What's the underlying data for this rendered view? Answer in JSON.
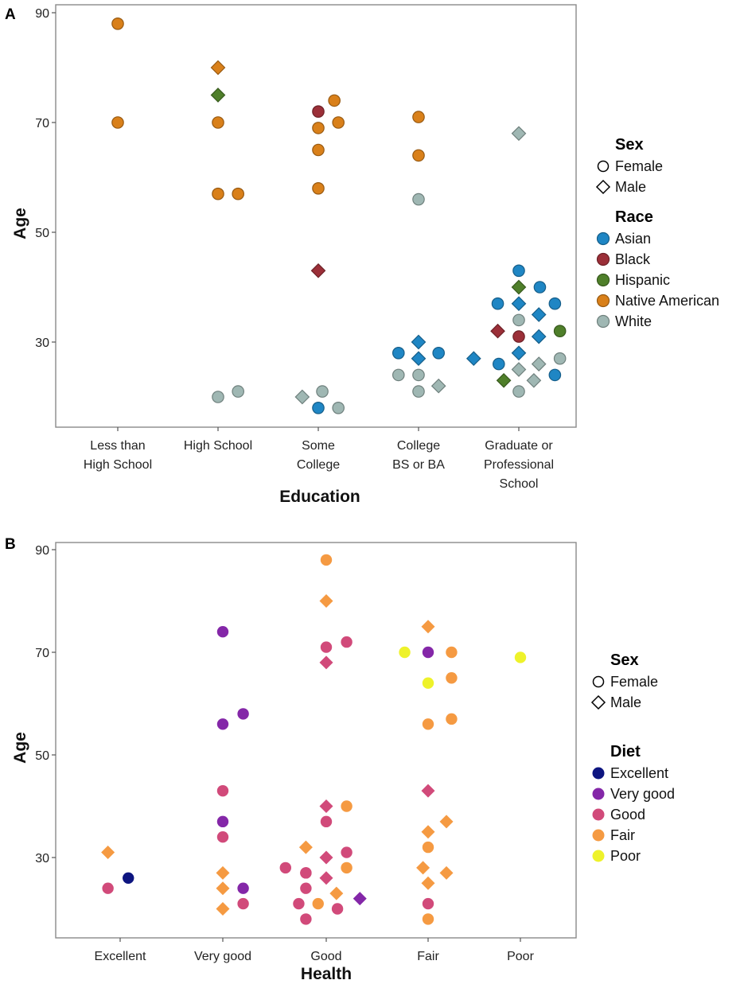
{
  "chart_data": [
    {
      "panel": "A",
      "type": "scatter",
      "xlabel": "Education",
      "ylabel": "Age",
      "categories": [
        [
          "Less than",
          "High School"
        ],
        [
          "High School"
        ],
        [
          "Some",
          "College"
        ],
        [
          "College",
          "BS or BA"
        ],
        [
          "Graduate or",
          "Professional",
          "School"
        ]
      ],
      "ylim": [
        15,
        92
      ],
      "yticks": [
        30,
        50,
        70,
        90
      ],
      "grid": false,
      "legend": {
        "position": "right",
        "groups": [
          {
            "title": "Sex",
            "kind": "shape",
            "items": [
              {
                "label": "Female",
                "shape": "circle"
              },
              {
                "label": "Male",
                "shape": "diamond"
              }
            ]
          },
          {
            "title": "Race",
            "kind": "color",
            "items": [
              {
                "label": "Asian",
                "color": "#1f86c4"
              },
              {
                "label": "Black",
                "color": "#9b2f38"
              },
              {
                "label": "Hispanic",
                "color": "#4f7f2a"
              },
              {
                "label": "Native American",
                "color": "#d9801a"
              },
              {
                "label": "White",
                "color": "#9fb7b3"
              }
            ]
          }
        ]
      },
      "points": [
        {
          "x": 1,
          "dx": 0,
          "y": 88,
          "shape": "circle",
          "group": "Native American"
        },
        {
          "x": 1,
          "dx": 0,
          "y": 70,
          "shape": "circle",
          "group": "Native American"
        },
        {
          "x": 2,
          "dx": 0,
          "y": 80,
          "shape": "diamond",
          "group": "Native American"
        },
        {
          "x": 2,
          "dx": 0,
          "y": 75,
          "shape": "diamond",
          "group": "Hispanic"
        },
        {
          "x": 2,
          "dx": 0,
          "y": 70,
          "shape": "circle",
          "group": "Native American"
        },
        {
          "x": 2,
          "dx": 0,
          "y": 57,
          "shape": "circle",
          "group": "Native American"
        },
        {
          "x": 2,
          "dx": 0.2,
          "y": 57,
          "shape": "circle",
          "group": "Native American"
        },
        {
          "x": 2,
          "dx": 0,
          "y": 20,
          "shape": "circle",
          "group": "White"
        },
        {
          "x": 2,
          "dx": 0.2,
          "y": 21,
          "shape": "circle",
          "group": "White"
        },
        {
          "x": 3,
          "dx": 0,
          "y": 72,
          "shape": "circle",
          "group": "Black"
        },
        {
          "x": 3,
          "dx": 0.16,
          "y": 74,
          "shape": "circle",
          "group": "Native American"
        },
        {
          "x": 3,
          "dx": 0,
          "y": 69,
          "shape": "circle",
          "group": "Native American"
        },
        {
          "x": 3,
          "dx": 0.2,
          "y": 70,
          "shape": "circle",
          "group": "Native American"
        },
        {
          "x": 3,
          "dx": 0,
          "y": 65,
          "shape": "circle",
          "group": "Native American"
        },
        {
          "x": 3,
          "dx": 0,
          "y": 58,
          "shape": "circle",
          "group": "Native American"
        },
        {
          "x": 3,
          "dx": 0,
          "y": 43,
          "shape": "diamond",
          "group": "Black"
        },
        {
          "x": 3,
          "dx": -0.16,
          "y": 20,
          "shape": "diamond",
          "group": "White"
        },
        {
          "x": 3,
          "dx": 0.04,
          "y": 21,
          "shape": "circle",
          "group": "White"
        },
        {
          "x": 3,
          "dx": 0,
          "y": 18,
          "shape": "circle",
          "group": "Asian"
        },
        {
          "x": 3,
          "dx": 0.2,
          "y": 18,
          "shape": "circle",
          "group": "White"
        },
        {
          "x": 4,
          "dx": 0,
          "y": 71,
          "shape": "circle",
          "group": "Native American"
        },
        {
          "x": 4,
          "dx": 0,
          "y": 64,
          "shape": "circle",
          "group": "Native American"
        },
        {
          "x": 4,
          "dx": 0,
          "y": 56,
          "shape": "circle",
          "group": "White"
        },
        {
          "x": 4,
          "dx": -0.2,
          "y": 28,
          "shape": "circle",
          "group": "Asian"
        },
        {
          "x": 4,
          "dx": 0,
          "y": 30,
          "shape": "diamond",
          "group": "Asian"
        },
        {
          "x": 4,
          "dx": 0.2,
          "y": 28,
          "shape": "circle",
          "group": "Asian"
        },
        {
          "x": 4,
          "dx": 0,
          "y": 27,
          "shape": "diamond",
          "group": "Asian"
        },
        {
          "x": 4,
          "dx": -0.2,
          "y": 24,
          "shape": "circle",
          "group": "White"
        },
        {
          "x": 4,
          "dx": 0,
          "y": 24,
          "shape": "circle",
          "group": "White"
        },
        {
          "x": 4,
          "dx": 0,
          "y": 21,
          "shape": "circle",
          "group": "White"
        },
        {
          "x": 4,
          "dx": 0.2,
          "y": 22,
          "shape": "diamond",
          "group": "White"
        },
        {
          "x": 5,
          "dx": 0,
          "y": 68,
          "shape": "diamond",
          "group": "White"
        },
        {
          "x": 5,
          "dx": 0,
          "y": 43,
          "shape": "circle",
          "group": "Asian"
        },
        {
          "x": 5,
          "dx": 0,
          "y": 40,
          "shape": "diamond",
          "group": "Hispanic"
        },
        {
          "x": 5,
          "dx": 0.21,
          "y": 40,
          "shape": "circle",
          "group": "Asian"
        },
        {
          "x": 5,
          "dx": -0.21,
          "y": 37,
          "shape": "circle",
          "group": "Asian"
        },
        {
          "x": 5,
          "dx": 0,
          "y": 37,
          "shape": "diamond",
          "group": "Asian"
        },
        {
          "x": 5,
          "dx": 0.36,
          "y": 37,
          "shape": "circle",
          "group": "Asian"
        },
        {
          "x": 5,
          "dx": 0.2,
          "y": 35,
          "shape": "diamond",
          "group": "Asian"
        },
        {
          "x": 5,
          "dx": 0,
          "y": 34,
          "shape": "circle",
          "group": "White"
        },
        {
          "x": 5,
          "dx": -0.21,
          "y": 32,
          "shape": "diamond",
          "group": "Black"
        },
        {
          "x": 5,
          "dx": 0,
          "y": 31,
          "shape": "circle",
          "group": "Black"
        },
        {
          "x": 5,
          "dx": 0.2,
          "y": 31,
          "shape": "diamond",
          "group": "Asian"
        },
        {
          "x": 5,
          "dx": 0.41,
          "y": 32,
          "shape": "circle",
          "group": "Hispanic"
        },
        {
          "x": 5,
          "dx": 0,
          "y": 28,
          "shape": "diamond",
          "group": "Asian"
        },
        {
          "x": 5,
          "dx": -0.45,
          "y": 27,
          "shape": "diamond",
          "group": "Asian"
        },
        {
          "x": 5,
          "dx": -0.2,
          "y": 26,
          "shape": "circle",
          "group": "Asian"
        },
        {
          "x": 5,
          "dx": 0,
          "y": 25,
          "shape": "diamond",
          "group": "White"
        },
        {
          "x": 5,
          "dx": 0.2,
          "y": 26,
          "shape": "diamond",
          "group": "White"
        },
        {
          "x": 5,
          "dx": 0.41,
          "y": 27,
          "shape": "circle",
          "group": "White"
        },
        {
          "x": 5,
          "dx": -0.15,
          "y": 23,
          "shape": "diamond",
          "group": "Hispanic"
        },
        {
          "x": 5,
          "dx": 0,
          "y": 21,
          "shape": "circle",
          "group": "White"
        },
        {
          "x": 5,
          "dx": 0.15,
          "y": 23,
          "shape": "diamond",
          "group": "White"
        },
        {
          "x": 5,
          "dx": 0.36,
          "y": 24,
          "shape": "circle",
          "group": "Asian"
        }
      ]
    },
    {
      "panel": "B",
      "type": "scatter",
      "xlabel": "Health",
      "ylabel": "Age",
      "categories": [
        [
          "Excellent"
        ],
        [
          "Very good"
        ],
        [
          "Good"
        ],
        [
          "Fair"
        ],
        [
          "Poor"
        ]
      ],
      "ylim": [
        15,
        92
      ],
      "yticks": [
        30,
        50,
        70,
        90
      ],
      "grid": false,
      "legend": {
        "position": "right",
        "groups": [
          {
            "title": "Sex",
            "kind": "shape",
            "items": [
              {
                "label": "Female",
                "shape": "circle"
              },
              {
                "label": "Male",
                "shape": "diamond"
              }
            ]
          },
          {
            "title": "Diet",
            "kind": "color",
            "items": [
              {
                "label": "Excellent",
                "color": "#0d1580"
              },
              {
                "label": "Very good",
                "color": "#8427a8"
              },
              {
                "label": "Good",
                "color": "#d14a7a"
              },
              {
                "label": "Fair",
                "color": "#f59a42"
              },
              {
                "label": "Poor",
                "color": "#eef22a"
              }
            ]
          }
        ]
      },
      "points": [
        {
          "x": 1,
          "dx": -0.12,
          "y": 31,
          "shape": "diamond",
          "group": "Fair"
        },
        {
          "x": 1,
          "dx": -0.12,
          "y": 24,
          "shape": "circle",
          "group": "Good"
        },
        {
          "x": 1,
          "dx": 0.08,
          "y": 26,
          "shape": "circle",
          "group": "Excellent"
        },
        {
          "x": 2,
          "dx": 0,
          "y": 74,
          "shape": "circle",
          "group": "Very good"
        },
        {
          "x": 2,
          "dx": 0.2,
          "y": 58,
          "shape": "circle",
          "group": "Very good"
        },
        {
          "x": 2,
          "dx": 0,
          "y": 56,
          "shape": "circle",
          "group": "Very good"
        },
        {
          "x": 2,
          "dx": 0,
          "y": 43,
          "shape": "circle",
          "group": "Good"
        },
        {
          "x": 2,
          "dx": 0,
          "y": 37,
          "shape": "circle",
          "group": "Very good"
        },
        {
          "x": 2,
          "dx": 0,
          "y": 34,
          "shape": "circle",
          "group": "Good"
        },
        {
          "x": 2,
          "dx": 0,
          "y": 27,
          "shape": "diamond",
          "group": "Fair"
        },
        {
          "x": 2,
          "dx": 0,
          "y": 24,
          "shape": "diamond",
          "group": "Fair"
        },
        {
          "x": 2,
          "dx": 0.2,
          "y": 24,
          "shape": "circle",
          "group": "Very good"
        },
        {
          "x": 2,
          "dx": 0,
          "y": 20,
          "shape": "diamond",
          "group": "Fair"
        },
        {
          "x": 2,
          "dx": 0.2,
          "y": 21,
          "shape": "circle",
          "group": "Good"
        },
        {
          "x": 3,
          "dx": 0,
          "y": 88,
          "shape": "circle",
          "group": "Fair"
        },
        {
          "x": 3,
          "dx": 0,
          "y": 80,
          "shape": "diamond",
          "group": "Fair"
        },
        {
          "x": 3,
          "dx": 0,
          "y": 71,
          "shape": "circle",
          "group": "Good"
        },
        {
          "x": 3,
          "dx": 0.2,
          "y": 72,
          "shape": "circle",
          "group": "Good"
        },
        {
          "x": 3,
          "dx": 0,
          "y": 68,
          "shape": "diamond",
          "group": "Good"
        },
        {
          "x": 3,
          "dx": 0,
          "y": 40,
          "shape": "diamond",
          "group": "Good"
        },
        {
          "x": 3,
          "dx": 0.2,
          "y": 40,
          "shape": "circle",
          "group": "Fair"
        },
        {
          "x": 3,
          "dx": 0,
          "y": 37,
          "shape": "circle",
          "group": "Good"
        },
        {
          "x": 3,
          "dx": -0.2,
          "y": 32,
          "shape": "diamond",
          "group": "Fair"
        },
        {
          "x": 3,
          "dx": 0,
          "y": 30,
          "shape": "diamond",
          "group": "Good"
        },
        {
          "x": 3,
          "dx": 0.2,
          "y": 31,
          "shape": "circle",
          "group": "Good"
        },
        {
          "x": 3,
          "dx": -0.4,
          "y": 28,
          "shape": "circle",
          "group": "Good"
        },
        {
          "x": 3,
          "dx": -0.2,
          "y": 27,
          "shape": "circle",
          "group": "Good"
        },
        {
          "x": 3,
          "dx": 0.2,
          "y": 28,
          "shape": "circle",
          "group": "Fair"
        },
        {
          "x": 3,
          "dx": -0.2,
          "y": 27,
          "shape": "circle",
          "group": "Good"
        },
        {
          "x": 3,
          "dx": -0.2,
          "y": 24,
          "shape": "circle",
          "group": "Good"
        },
        {
          "x": 3,
          "dx": 0,
          "y": 26,
          "shape": "diamond",
          "group": "Good"
        },
        {
          "x": 3,
          "dx": 0.1,
          "y": 23,
          "shape": "diamond",
          "group": "Fair"
        },
        {
          "x": 3,
          "dx": -0.27,
          "y": 21,
          "shape": "circle",
          "group": "Good"
        },
        {
          "x": 3,
          "dx": -0.08,
          "y": 21,
          "shape": "circle",
          "group": "Fair"
        },
        {
          "x": 3,
          "dx": 0.11,
          "y": 20,
          "shape": "circle",
          "group": "Good"
        },
        {
          "x": 3,
          "dx": 0.33,
          "y": 22,
          "shape": "diamond",
          "group": "Very good"
        },
        {
          "x": 3,
          "dx": -0.2,
          "y": 18,
          "shape": "circle",
          "group": "Good"
        },
        {
          "x": 4,
          "dx": 0,
          "y": 75,
          "shape": "diamond",
          "group": "Fair"
        },
        {
          "x": 4,
          "dx": -0.23,
          "y": 70,
          "shape": "circle",
          "group": "Poor"
        },
        {
          "x": 4,
          "dx": 0,
          "y": 70,
          "shape": "circle",
          "group": "Very good"
        },
        {
          "x": 4,
          "dx": 0.23,
          "y": 70,
          "shape": "circle",
          "group": "Fair"
        },
        {
          "x": 4,
          "dx": 0.23,
          "y": 65,
          "shape": "circle",
          "group": "Fair"
        },
        {
          "x": 4,
          "dx": 0,
          "y": 64,
          "shape": "circle",
          "group": "Poor"
        },
        {
          "x": 4,
          "dx": 0.23,
          "y": 57,
          "shape": "circle",
          "group": "Fair"
        },
        {
          "x": 4,
          "dx": 0,
          "y": 56,
          "shape": "circle",
          "group": "Fair"
        },
        {
          "x": 4,
          "dx": 0,
          "y": 43,
          "shape": "diamond",
          "group": "Good"
        },
        {
          "x": 4,
          "dx": 0.18,
          "y": 37,
          "shape": "diamond",
          "group": "Fair"
        },
        {
          "x": 4,
          "dx": 0,
          "y": 35,
          "shape": "diamond",
          "group": "Fair"
        },
        {
          "x": 4,
          "dx": 0,
          "y": 32,
          "shape": "circle",
          "group": "Fair"
        },
        {
          "x": 4,
          "dx": -0.05,
          "y": 28,
          "shape": "diamond",
          "group": "Fair"
        },
        {
          "x": 4,
          "dx": 0.18,
          "y": 27,
          "shape": "diamond",
          "group": "Fair"
        },
        {
          "x": 4,
          "dx": 0,
          "y": 25,
          "shape": "diamond",
          "group": "Fair"
        },
        {
          "x": 4,
          "dx": 0,
          "y": 21,
          "shape": "circle",
          "group": "Good"
        },
        {
          "x": 4,
          "dx": 0,
          "y": 18,
          "shape": "circle",
          "group": "Fair"
        },
        {
          "x": 5,
          "dx": 0,
          "y": 69,
          "shape": "circle",
          "group": "Poor"
        }
      ]
    }
  ]
}
